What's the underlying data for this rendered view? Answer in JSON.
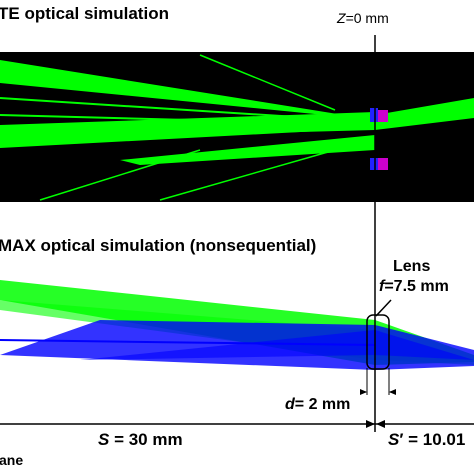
{
  "panel_top": {
    "title": "TE optical simulation"
  },
  "panel_bottom": {
    "title": "MAX optical simulation (nonsequential)"
  },
  "z_axis": {
    "var": "Z",
    "rest": "=0 mm"
  },
  "lens_top": {
    "name": "Lens",
    "f_var": "f",
    "f_value": "=7.5 mm"
  },
  "lens_bottom": {
    "name": "Lens",
    "f_var": "f",
    "f_value": "=7.5 mm"
  },
  "thickness": {
    "var": "d",
    "value": "= 2 mm"
  },
  "distance_object": {
    "var": "S",
    "value": " = 30 mm"
  },
  "distance_image": {
    "var": "S",
    "prime": "′",
    "value": " = 10.01"
  },
  "footer": {
    "text": "ane"
  },
  "colors": {
    "ray_green": "#00ff00",
    "ray_blue": "#0000ff",
    "lens_purple": "#cc00cc",
    "lens_blue": "#2222ff"
  }
}
